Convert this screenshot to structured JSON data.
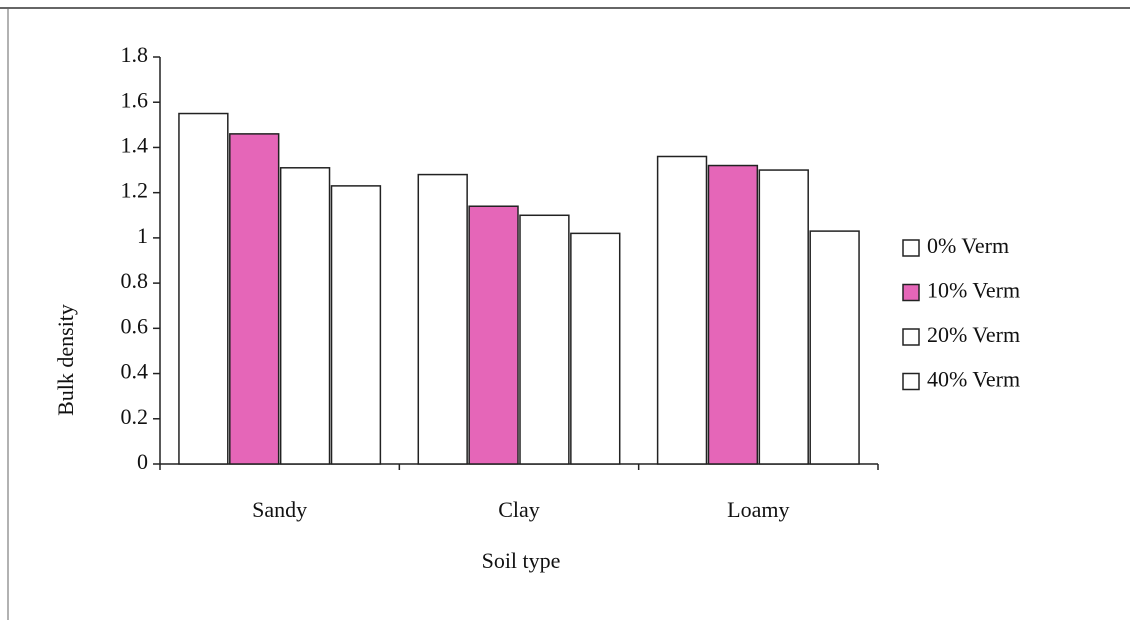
{
  "chart_data": {
    "type": "bar",
    "x_label": "Soil type",
    "y_label": "Bulk density",
    "categories": [
      "Sandy",
      "Clay",
      "Loamy"
    ],
    "series": [
      {
        "name": "0% Verm",
        "color": "#ffffff",
        "values": [
          1.55,
          1.28,
          1.36
        ]
      },
      {
        "name": "10% Verm",
        "color": "#e566b8",
        "values": [
          1.46,
          1.14,
          1.32
        ]
      },
      {
        "name": "20% Verm",
        "color": "#ffffff",
        "values": [
          1.31,
          1.1,
          1.3
        ]
      },
      {
        "name": "40% Verm",
        "color": "#ffffff",
        "values": [
          1.23,
          1.02,
          1.03
        ]
      }
    ],
    "ylim": [
      0,
      1.8
    ],
    "yticks": [
      0,
      0.2,
      0.4,
      0.6,
      0.8,
      1,
      1.2,
      1.4,
      1.6,
      1.8
    ],
    "legend": "right"
  }
}
